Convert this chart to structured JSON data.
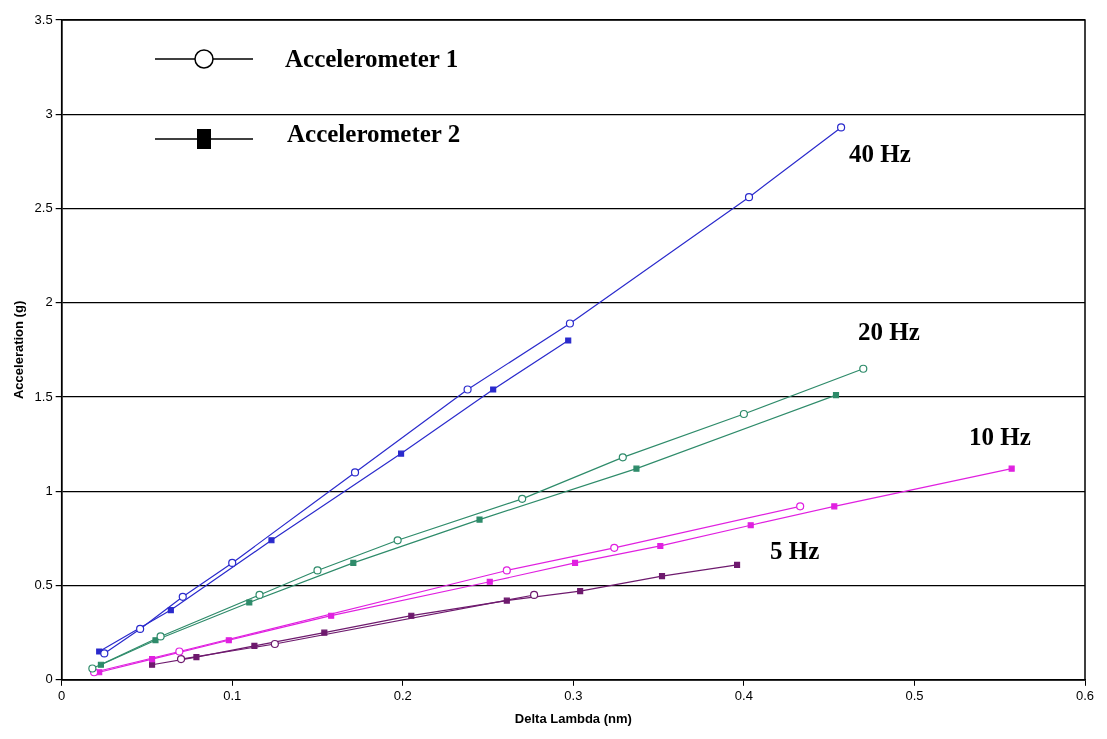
{
  "chart_data": {
    "type": "line",
    "xlabel": "Delta Lambda (nm)",
    "ylabel": "Acceleration (g)",
    "xlim": [
      0,
      0.6
    ],
    "xticks": [
      0,
      0.1,
      0.2,
      0.3,
      0.4,
      0.5,
      0.6
    ],
    "ylim": [
      0,
      3.5
    ],
    "yticks": [
      0,
      0.5,
      1,
      1.5,
      2,
      2.5,
      3,
      3.5
    ],
    "grid": "y",
    "series": [
      {
        "marker": "circle",
        "color": "#2a2acc",
        "x": [
          0.025,
          0.046,
          0.071,
          0.1,
          0.172,
          0.238,
          0.298,
          0.403,
          0.457
        ],
        "values": [
          0.14,
          0.27,
          0.44,
          0.62,
          1.1,
          1.54,
          1.89,
          2.56,
          2.93
        ]
      },
      {
        "marker": "square",
        "color": "#2a2acc",
        "x": [
          0.022,
          0.064,
          0.123,
          0.199,
          0.253,
          0.297
        ],
        "values": [
          0.15,
          0.37,
          0.74,
          1.2,
          1.54,
          1.8
        ]
      },
      {
        "marker": "circle",
        "color": "#2e8b6a",
        "x": [
          0.018,
          0.058,
          0.116,
          0.15,
          0.197,
          0.27,
          0.329,
          0.4,
          0.47
        ],
        "values": [
          0.06,
          0.23,
          0.45,
          0.58,
          0.74,
          0.96,
          1.18,
          1.41,
          1.65
        ]
      },
      {
        "marker": "square",
        "color": "#2e8b6a",
        "x": [
          0.023,
          0.055,
          0.11,
          0.171,
          0.245,
          0.337,
          0.454
        ],
        "values": [
          0.08,
          0.21,
          0.41,
          0.62,
          0.85,
          1.12,
          1.51
        ]
      },
      {
        "marker": "circle",
        "color": "#e020e0",
        "x": [
          0.019,
          0.069,
          0.261,
          0.324,
          0.433
        ],
        "values": [
          0.04,
          0.15,
          0.58,
          0.7,
          0.92
        ]
      },
      {
        "marker": "square",
        "color": "#e020e0",
        "x": [
          0.022,
          0.053,
          0.098,
          0.158,
          0.251,
          0.301,
          0.351,
          0.404,
          0.453,
          0.557
        ],
        "values": [
          0.04,
          0.11,
          0.21,
          0.34,
          0.52,
          0.62,
          0.71,
          0.82,
          0.92,
          1.12
        ]
      },
      {
        "marker": "circle",
        "color": "#6e1a6e",
        "x": [
          0.07,
          0.125,
          0.277
        ],
        "values": [
          0.11,
          0.19,
          0.45
        ]
      },
      {
        "marker": "square",
        "color": "#6e1a6e",
        "x": [
          0.053,
          0.079,
          0.113,
          0.154,
          0.205,
          0.261,
          0.304,
          0.352,
          0.396
        ],
        "values": [
          0.08,
          0.12,
          0.18,
          0.25,
          0.34,
          0.42,
          0.47,
          0.55,
          0.61
        ]
      }
    ],
    "annotations": [
      "Accelerometer 1",
      "Accelerometer 2",
      "40 Hz",
      "20 Hz",
      "10 Hz",
      "5 Hz"
    ]
  }
}
